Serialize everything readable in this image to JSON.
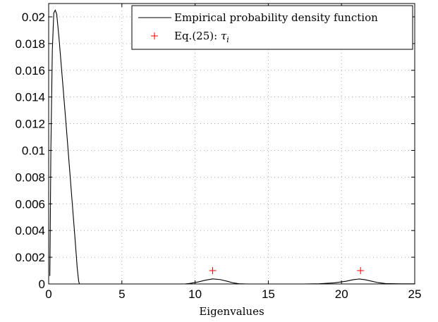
{
  "chart_data": {
    "type": "line",
    "xlabel": "Eigenvalues",
    "ylabel": "",
    "xlim": [
      0,
      25
    ],
    "ylim": [
      0,
      0.021
    ],
    "grid": true,
    "legend_position": "top-right",
    "xticks": [
      0,
      5,
      10,
      15,
      20,
      25
    ],
    "xtick_labels": [
      "0",
      "5",
      "10",
      "15",
      "20",
      "25"
    ],
    "yticks": [
      0,
      0.002,
      0.004,
      0.006,
      0.008,
      0.01,
      0.012,
      0.014,
      0.016,
      0.018,
      0.02
    ],
    "ytick_labels": [
      "0",
      "0.002",
      "0.004",
      "0.006",
      "0.008",
      "0.01",
      "0.012",
      "0.014",
      "0.016",
      "0.018",
      "0.02"
    ],
    "series": [
      {
        "name": "Empirical probability density function",
        "kind": "line",
        "color": "#000000",
        "x": [
          0.08,
          0.1,
          0.15,
          0.25,
          0.35,
          0.45,
          0.55,
          0.7,
          0.85,
          1.0,
          1.2,
          1.4,
          1.6,
          1.8,
          1.95,
          2.05,
          2.1,
          2.5,
          9.3,
          9.7,
          10.2,
          10.7,
          11.2,
          11.7,
          12.2,
          12.6,
          13.0,
          13.5,
          17.5,
          18.5,
          19.5,
          20.3,
          20.8,
          21.2,
          21.6,
          22.0,
          22.5,
          23.0,
          24.0,
          25.0
        ],
        "y": [
          0.0006,
          0.003,
          0.01,
          0.0175,
          0.0203,
          0.0205,
          0.0202,
          0.0185,
          0.0165,
          0.0145,
          0.0118,
          0.009,
          0.0062,
          0.0034,
          0.0012,
          0.0002,
          0,
          0,
          0,
          5e-05,
          0.00015,
          0.00028,
          0.00038,
          0.00033,
          0.0002,
          8e-05,
          2e-05,
          0,
          0,
          2e-05,
          8e-05,
          0.0002,
          0.00032,
          0.00037,
          0.00032,
          0.00022,
          0.0001,
          3e-05,
          1e-05,
          1e-05
        ]
      },
      {
        "name": "Eq.(25): τ_i",
        "kind": "markers",
        "marker": "+",
        "color": "#ff0000",
        "x": [
          11.2,
          21.3
        ],
        "y": [
          0.001,
          0.001
        ]
      }
    ],
    "legend": {
      "line_label": "Empirical probability density function",
      "marker_label_prefix": "Eq.(25): ",
      "marker_label_symbol": "τ",
      "marker_label_sub": "i"
    }
  }
}
